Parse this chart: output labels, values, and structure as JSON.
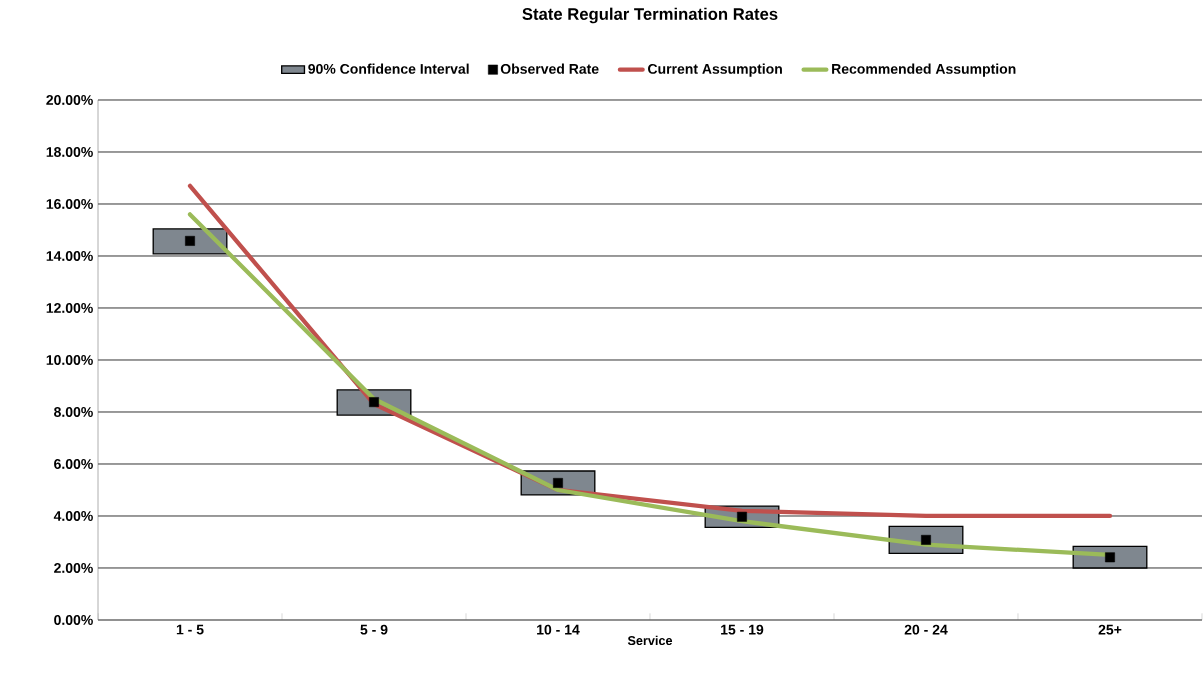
{
  "chart_data": {
    "type": "bar",
    "title": "State Regular Termination Rates",
    "xlabel": "Service",
    "categories": [
      "1 - 5",
      "5 - 9",
      "10 - 14",
      "15 - 19",
      "20 - 24",
      "25+"
    ],
    "series": [
      {
        "name": "90% Confidence Interval",
        "color": "#7f878f",
        "base": [
          14.08,
          7.88,
          4.81,
          3.56,
          2.56,
          2.0
        ],
        "values": [
          0.96,
          0.97,
          0.92,
          0.82,
          1.04,
          0.83
        ]
      },
      {
        "name": "Observed Rate",
        "type": "scatter",
        "marker": "square",
        "color": "#000000",
        "values": [
          14.58,
          8.38,
          5.27,
          3.97,
          3.08,
          2.41
        ]
      },
      {
        "name": "Current Assumption",
        "type": "line",
        "marker": "none",
        "color": "#c0504d",
        "values": [
          16.7,
          8.3,
          5.0,
          4.2,
          4.0,
          4.0
        ]
      },
      {
        "name": "Recommended Assumption",
        "type": "line",
        "marker": "none",
        "color": "#9bbb59",
        "values": [
          15.6,
          8.5,
          5.0,
          3.8,
          2.9,
          2.5
        ]
      }
    ],
    "ylim": [
      0,
      20
    ],
    "yticks": [
      {
        "value": 0,
        "label": "0.00%"
      },
      {
        "value": 2,
        "label": "2.00%"
      },
      {
        "value": 4,
        "label": "4.00%"
      },
      {
        "value": 6,
        "label": "6.00%"
      },
      {
        "value": 8,
        "label": "8.00%"
      },
      {
        "value": 10,
        "label": "10.00%"
      },
      {
        "value": 12,
        "label": "12.00%"
      },
      {
        "value": 14,
        "label": "14.00%"
      },
      {
        "value": 16,
        "label": "16.00%"
      },
      {
        "value": 18,
        "label": "18.00%"
      },
      {
        "value": 20,
        "label": "20.00%"
      }
    ],
    "grid": "y",
    "legend": "top"
  }
}
